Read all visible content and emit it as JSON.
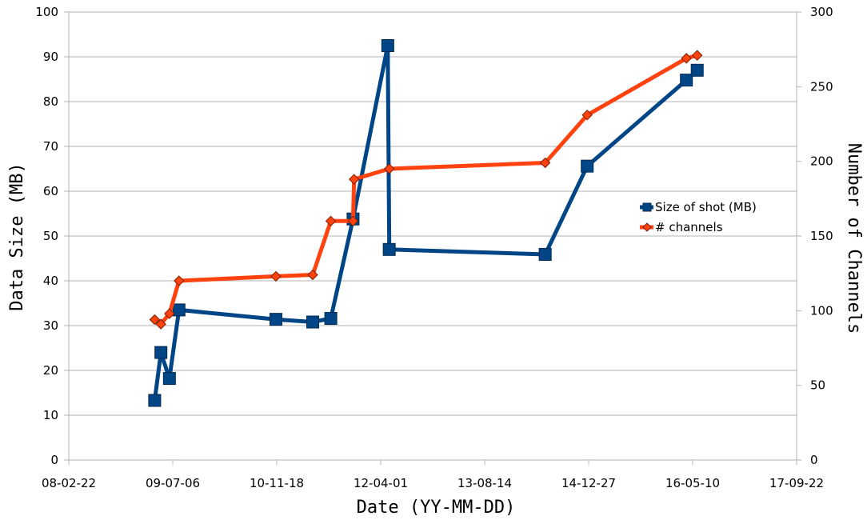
{
  "chart_data": {
    "type": "line",
    "xlabel": "Date (YY-MM-DD)",
    "ylabel": "Data Size (MB)",
    "y2label": "Number of Channels",
    "x_ticks": [
      "08-02-22",
      "09-07-06",
      "10-11-18",
      "12-04-01",
      "13-08-14",
      "14-12-27",
      "16-05-10",
      "17-09-22"
    ],
    "x_range": [
      "2008-02-22",
      "2017-09-22"
    ],
    "ylim": [
      0,
      100
    ],
    "y_ticks": [
      "0",
      "10",
      "20",
      "30",
      "40",
      "50",
      "60",
      "70",
      "80",
      "90",
      "100"
    ],
    "y2lim": [
      0,
      300
    ],
    "y2_ticks": [
      "0",
      "50",
      "100",
      "150",
      "200",
      "250",
      "300"
    ],
    "grid": "horizontal",
    "legend_position": "right",
    "series": [
      {
        "name": "Size of shot (MB)",
        "axis": "left",
        "color": "#004586",
        "marker": "square",
        "points": [
          {
            "x": "2009-04-10",
            "y": 13.3
          },
          {
            "x": "2009-05-10",
            "y": 24.0
          },
          {
            "x": "2009-06-20",
            "y": 18.2
          },
          {
            "x": "2009-08-05",
            "y": 33.5
          },
          {
            "x": "2010-11-14",
            "y": 31.4
          },
          {
            "x": "2011-05-10",
            "y": 30.8
          },
          {
            "x": "2011-08-05",
            "y": 31.6
          },
          {
            "x": "2011-11-20",
            "y": 53.8
          },
          {
            "x": "2012-05-05",
            "y": 92.5
          },
          {
            "x": "2012-05-12",
            "y": 47.0
          },
          {
            "x": "2014-06-01",
            "y": 45.9
          },
          {
            "x": "2014-12-20",
            "y": 65.6
          },
          {
            "x": "2016-04-10",
            "y": 84.8
          },
          {
            "x": "2016-06-01",
            "y": 87.0
          }
        ]
      },
      {
        "name": "# channels",
        "axis": "right",
        "color": "#ff420e",
        "marker": "diamond",
        "points": [
          {
            "x": "2009-04-10",
            "y": 94
          },
          {
            "x": "2009-05-10",
            "y": 91
          },
          {
            "x": "2009-06-20",
            "y": 98
          },
          {
            "x": "2009-08-05",
            "y": 120
          },
          {
            "x": "2010-11-14",
            "y": 123
          },
          {
            "x": "2011-05-10",
            "y": 124
          },
          {
            "x": "2011-08-05",
            "y": 160
          },
          {
            "x": "2011-11-20",
            "y": 160
          },
          {
            "x": "2011-11-25",
            "y": 188
          },
          {
            "x": "2012-05-12",
            "y": 195
          },
          {
            "x": "2014-06-01",
            "y": 199
          },
          {
            "x": "2014-12-20",
            "y": 231
          },
          {
            "x": "2016-04-10",
            "y": 269
          },
          {
            "x": "2016-06-01",
            "y": 271
          }
        ]
      }
    ]
  }
}
